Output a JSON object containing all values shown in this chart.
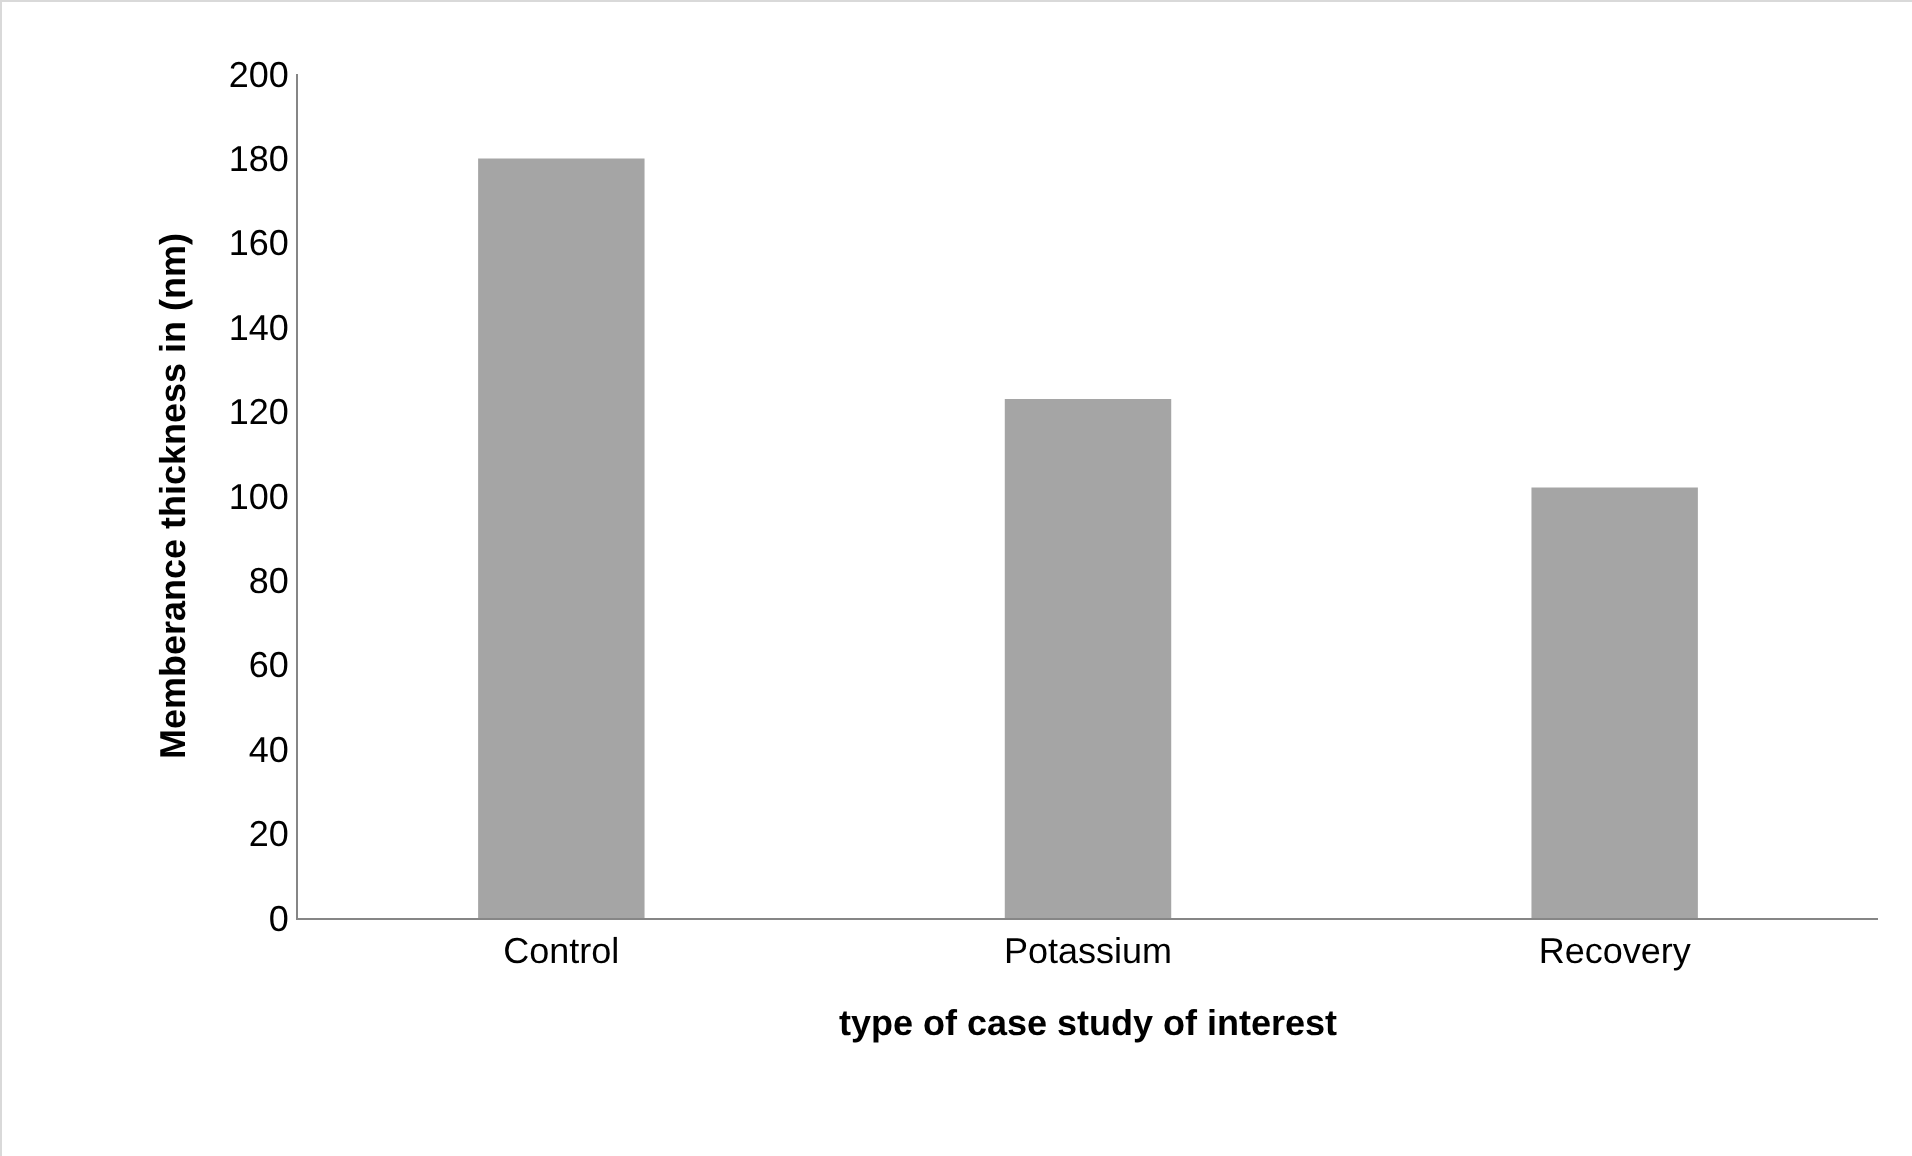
{
  "chart_data": {
    "type": "bar",
    "xlabel": "type of case study of interest",
    "ylabel": "Memberance thickness in (nm)",
    "categories": [
      "Control",
      "Potassium",
      "Recovery"
    ],
    "values": [
      180,
      123,
      102
    ],
    "color": "#a5a5a5",
    "ylim": [
      0,
      200
    ],
    "yticks": [
      0,
      20,
      40,
      60,
      80,
      100,
      120,
      140,
      160,
      180,
      200
    ],
    "grid": false,
    "legend": false
  }
}
